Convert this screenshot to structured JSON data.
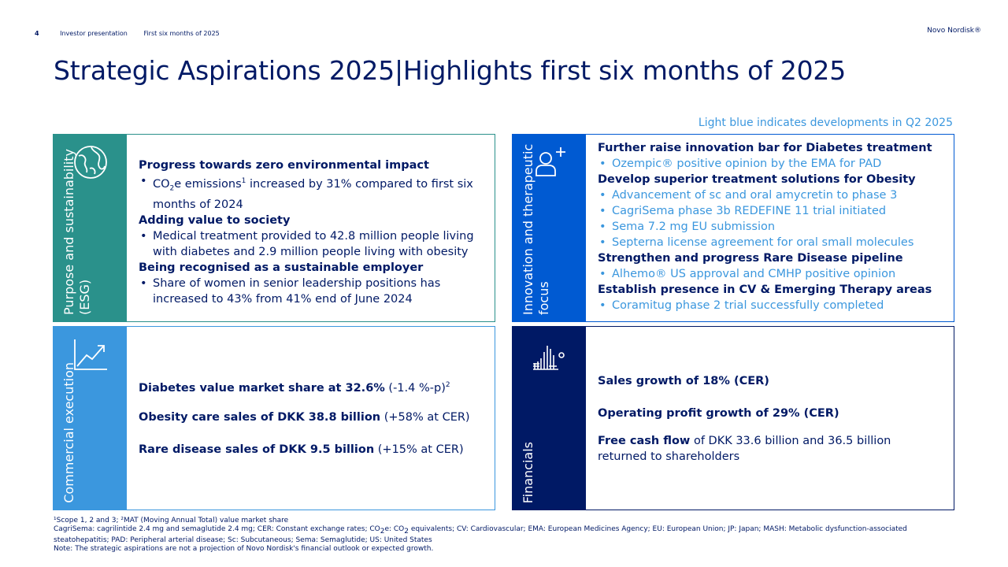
{
  "header": {
    "page_number": "4",
    "section": "Investor presentation",
    "period": "First six months of 2025",
    "brand": "Novo Nordisk®"
  },
  "title": "Strategic Aspirations 2025|Highlights first six months of 2025",
  "legend_note": "Light blue indicates developments in Q2 2025",
  "colors": {
    "teal": "#2a918b",
    "blue": "#005ad2",
    "light_blue": "#3b97de",
    "navy": "#001965"
  },
  "panels": {
    "esg": {
      "label": "Purpose and sustainability (ESG)",
      "icon": "globe-icon",
      "h1": "Progress towards zero environmental impact",
      "b1_pre": "CO",
      "b1_sub": "2",
      "b1_mid": "e emissions",
      "b1_sup": "1",
      "b1_post": " increased by 31% compared to first six months of 2024",
      "h2": "Adding value to society",
      "b2": "Medical treatment provided to 42.8 million people living with diabetes and 2.9 million people living with obesity",
      "h3": "Being recognised as a sustainable employer",
      "b3": "Share of women in senior leadership positions has increased to 43% from 41% end of June 2024"
    },
    "innovation": {
      "label": "Innovation and therapeutic focus",
      "icon": "person-plus-icon",
      "h1": "Further raise innovation bar for Diabetes treatment",
      "b1": "Ozempic® positive opinion by the EMA for PAD",
      "h2": "Develop superior treatment solutions for Obesity",
      "b2a": "Advancement of sc and oral amycretin to phase 3",
      "b2b": "CagriSema phase 3b REDEFINE 11 trial initiated",
      "b2c": "Sema 7.2 mg EU submission",
      "b2d": "Septerna license agreement for oral small molecules",
      "h3": "Strengthen and progress Rare Disease pipeline",
      "b3": "Alhemo® US approval and CMHP positive opinion",
      "h4": "Establish presence in CV & Emerging Therapy areas",
      "b4": "Coramitug phase 2 trial successfully completed"
    },
    "commercial": {
      "label": "Commercial execution",
      "icon": "trend-up-icon",
      "l1_bold": "Diabetes value market share at 32.6%",
      "l1_rest": " (-1.4 %-p)",
      "l1_sup": "2",
      "l2_bold": "Obesity care sales of DKK 38.8 billion",
      "l2_rest": " (+58% at CER)",
      "l3_bold": "Rare disease sales of DKK 9.5 billion",
      "l3_rest": " (+15% at CER)"
    },
    "financials": {
      "label": "Financials",
      "icon": "bar-chart-icon",
      "l1_bold": "Sales growth of 18% (CER)",
      "l2_bold": "Operating profit growth of 29% (CER)",
      "l3_bold": "Free cash flow",
      "l3_rest": " of DKK 33.6 billion and 36.5 billion returned to shareholders"
    }
  },
  "footnotes": {
    "line1": "¹Scope 1, 2 and 3; ²MAT (Moving Annual Total) value market share",
    "line2_a": "CagriSema: cagrilintide 2.4 mg and semaglutide 2.4 mg; CER: Constant exchange rates; CO",
    "line2_sub1": "2",
    "line2_b": "e: CO",
    "line2_sub2": "2",
    "line2_c": " equivalents; CV: Cardiovascular; EMA: European Medicines Agency; EU: European Union; JP: Japan; MASH: Metabolic dysfunction-associated steatohepatitis; PAD: Peripheral arterial disease; Sc: Subcutaneous; Sema: Semaglutide; US: United States",
    "line3": "Note: The strategic aspirations are not a projection of Novo Nordisk's financial outlook or expected growth."
  }
}
